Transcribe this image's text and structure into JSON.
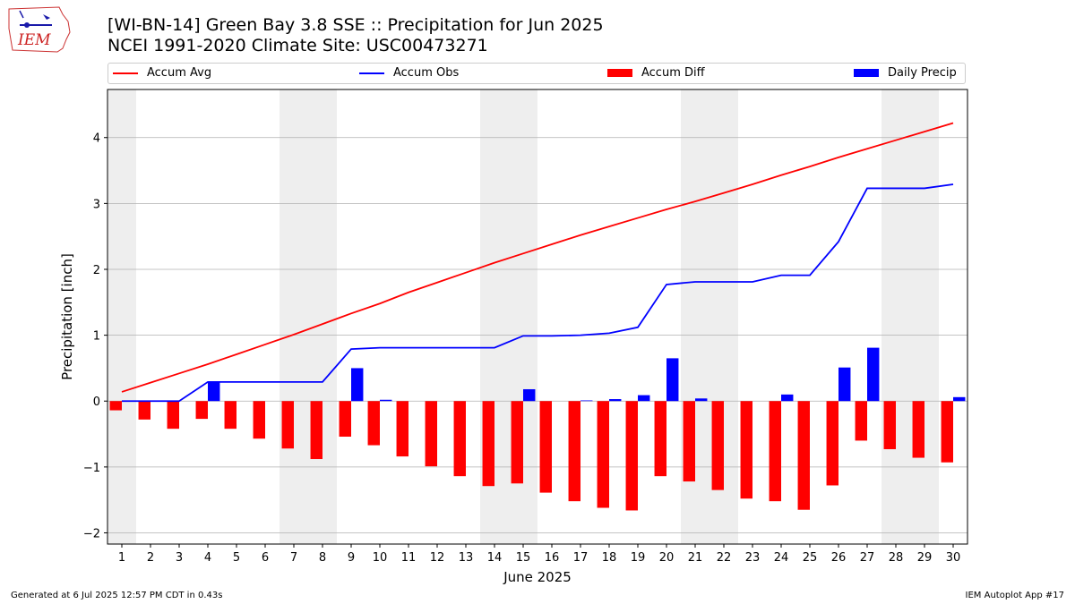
{
  "header": {
    "title_line1": "[WI-BN-14] Green Bay 3.8 SSE :: Precipitation for Jun 2025",
    "title_line2": "NCEI 1991-2020 Climate Site: USC00473271",
    "logo_text": "IEM"
  },
  "legend": [
    {
      "label": "Accum Avg",
      "kind": "line",
      "color": "#ff0000"
    },
    {
      "label": "Accum Obs",
      "kind": "line",
      "color": "#0000ff"
    },
    {
      "label": "Accum Diff",
      "kind": "bar",
      "color": "#ff0000"
    },
    {
      "label": "Daily Precip",
      "kind": "bar",
      "color": "#0000ff"
    }
  ],
  "footer": {
    "left": "Generated at 6 Jul 2025 12:57 PM CDT in 0.43s",
    "right": "IEM Autoplot App #17"
  },
  "chart_data": {
    "type": "bar",
    "xlabel": "June 2025",
    "ylabel": "Precipitation [inch]",
    "ylim": [
      -2.17,
      4.73
    ],
    "yticks": [
      -2,
      -1,
      0,
      1,
      2,
      3,
      4
    ],
    "grid": true,
    "legend_position": "top",
    "x": [
      1,
      2,
      3,
      4,
      5,
      6,
      7,
      8,
      9,
      10,
      11,
      12,
      13,
      14,
      15,
      16,
      17,
      18,
      19,
      20,
      21,
      22,
      23,
      24,
      25,
      26,
      27,
      28,
      29,
      30
    ],
    "weekend_shading": [
      [
        1,
        1
      ],
      [
        7,
        8
      ],
      [
        14,
        15
      ],
      [
        21,
        22
      ],
      [
        28,
        29
      ]
    ],
    "series": [
      {
        "name": "Accum Avg",
        "type": "line",
        "color": "#ff0000",
        "values": [
          0.14,
          0.28,
          0.42,
          0.56,
          0.71,
          0.86,
          1.01,
          1.17,
          1.33,
          1.48,
          1.65,
          1.8,
          1.95,
          2.1,
          2.24,
          2.38,
          2.52,
          2.65,
          2.78,
          2.91,
          3.03,
          3.16,
          3.29,
          3.43,
          3.56,
          3.7,
          3.83,
          3.96,
          4.09,
          4.22
        ]
      },
      {
        "name": "Accum Obs",
        "type": "line",
        "color": "#0000ff",
        "values": [
          0.0,
          0.0,
          0.0,
          0.29,
          0.29,
          0.29,
          0.29,
          0.29,
          0.79,
          0.81,
          0.81,
          0.81,
          0.81,
          0.81,
          0.99,
          0.99,
          1.0,
          1.03,
          1.12,
          1.77,
          1.81,
          1.81,
          1.81,
          1.91,
          1.91,
          2.42,
          3.23,
          3.23,
          3.23,
          3.29
        ]
      },
      {
        "name": "Accum Diff",
        "type": "bar",
        "color": "#ff0000",
        "values": [
          -0.14,
          -0.28,
          -0.42,
          -0.27,
          -0.42,
          -0.57,
          -0.72,
          -0.88,
          -0.54,
          -0.67,
          -0.84,
          -0.99,
          -1.14,
          -1.29,
          -1.25,
          -1.39,
          -1.52,
          -1.62,
          -1.66,
          -1.14,
          -1.22,
          -1.35,
          -1.48,
          -1.52,
          -1.65,
          -1.28,
          -0.6,
          -0.73,
          -0.86,
          -0.93
        ]
      },
      {
        "name": "Daily Precip",
        "type": "bar",
        "color": "#0000ff",
        "values": [
          0.0,
          0.0,
          0.0,
          0.29,
          0.0,
          0.0,
          0.0,
          0.0,
          0.5,
          0.02,
          0.0,
          0.0,
          0.0,
          0.0,
          0.18,
          0.0,
          0.01,
          0.03,
          0.09,
          0.65,
          0.04,
          0.0,
          0.0,
          0.1,
          0.0,
          0.51,
          0.81,
          0.0,
          0.0,
          0.06
        ]
      }
    ]
  }
}
